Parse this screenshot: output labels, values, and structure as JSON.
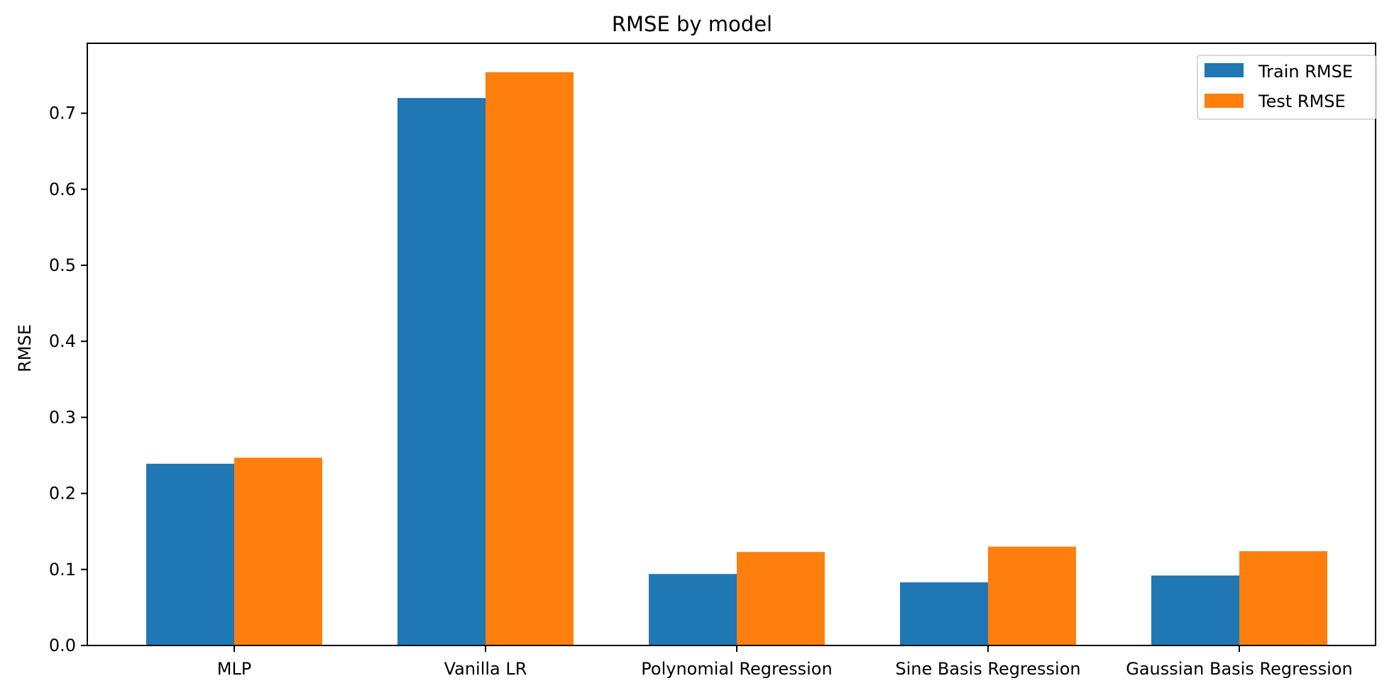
{
  "chart_data": {
    "type": "bar",
    "title": "RMSE by model",
    "xlabel": "",
    "ylabel": "RMSE",
    "categories": [
      "MLP",
      "Vanilla LR",
      "Polynomial Regression",
      "Sine Basis Regression",
      "Gaussian Basis Regression"
    ],
    "series": [
      {
        "name": "Train RMSE",
        "color": "#1f77b4",
        "values": [
          0.239,
          0.72,
          0.094,
          0.083,
          0.092
        ]
      },
      {
        "name": "Test RMSE",
        "color": "#ff7f0e",
        "values": [
          0.247,
          0.754,
          0.123,
          0.13,
          0.124
        ]
      }
    ],
    "ylim": [
      0,
      0.792
    ],
    "yticks": [
      0.0,
      0.1,
      0.2,
      0.3,
      0.4,
      0.5,
      0.6,
      0.7
    ],
    "ytick_labels": [
      "0.0",
      "0.1",
      "0.2",
      "0.3",
      "0.4",
      "0.5",
      "0.6",
      "0.7"
    ],
    "grid": false,
    "legend_position": "top-right"
  }
}
